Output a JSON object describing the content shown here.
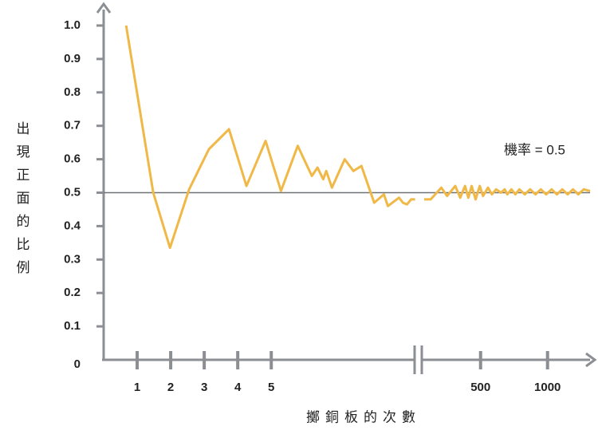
{
  "chart_data": {
    "type": "line",
    "ylabel": "出現正面的比例",
    "xlabel": "擲銅板的次數",
    "ylim": [
      0,
      1
    ],
    "yticks": [
      0,
      0.1,
      0.2,
      0.3,
      0.4,
      0.5,
      0.6,
      0.7,
      0.8,
      0.9,
      {
        "value": 1,
        "label": "1.0"
      }
    ],
    "x_segments": [
      {
        "xlim": [
          0,
          9.3
        ],
        "xticks": [
          1,
          2,
          3,
          4,
          5
        ]
      },
      {
        "xlim": [
          67,
          1347
        ],
        "xticks": [
          500,
          1000
        ]
      }
    ],
    "reference_line": {
      "value": 0.5,
      "label": "機率 = 0.5"
    },
    "series": [
      {
        "color": "#f0b846",
        "segment": 0,
        "x": [
          0.67,
          1.48,
          1.98,
          2.55,
          3.14,
          3.74,
          4.26,
          4.83,
          5.29,
          5.79,
          6.21,
          6.38,
          6.55,
          6.64,
          6.81,
          7.19,
          7.45,
          7.69,
          8.07,
          8.36,
          8.48,
          8.81,
          8.93,
          9.05,
          9.17,
          9.29
        ],
        "values": [
          1.0,
          0.5,
          0.335,
          0.51,
          0.63,
          0.69,
          0.52,
          0.655,
          0.505,
          0.64,
          0.55,
          0.575,
          0.54,
          0.565,
          0.515,
          0.6,
          0.565,
          0.58,
          0.47,
          0.495,
          0.46,
          0.485,
          0.47,
          0.465,
          0.48,
          0.48
        ]
      },
      {
        "color": "#f0b846",
        "segment": 1,
        "x": [
          79,
          128,
          207,
          250,
          311,
          348,
          384,
          409,
          433,
          463,
          494,
          518,
          555,
          585,
          616,
          652,
          680,
          700,
          730,
          760,
          790,
          830,
          870,
          910,
          950,
          990,
          1030,
          1070,
          1110,
          1150,
          1190,
          1230,
          1270,
          1318
        ],
        "values": [
          0.48,
          0.48,
          0.515,
          0.49,
          0.52,
          0.485,
          0.52,
          0.485,
          0.52,
          0.48,
          0.52,
          0.49,
          0.515,
          0.495,
          0.51,
          0.5,
          0.51,
          0.495,
          0.51,
          0.495,
          0.51,
          0.495,
          0.51,
          0.495,
          0.51,
          0.495,
          0.51,
          0.495,
          0.51,
          0.495,
          0.51,
          0.495,
          0.51,
          0.505
        ]
      }
    ]
  }
}
